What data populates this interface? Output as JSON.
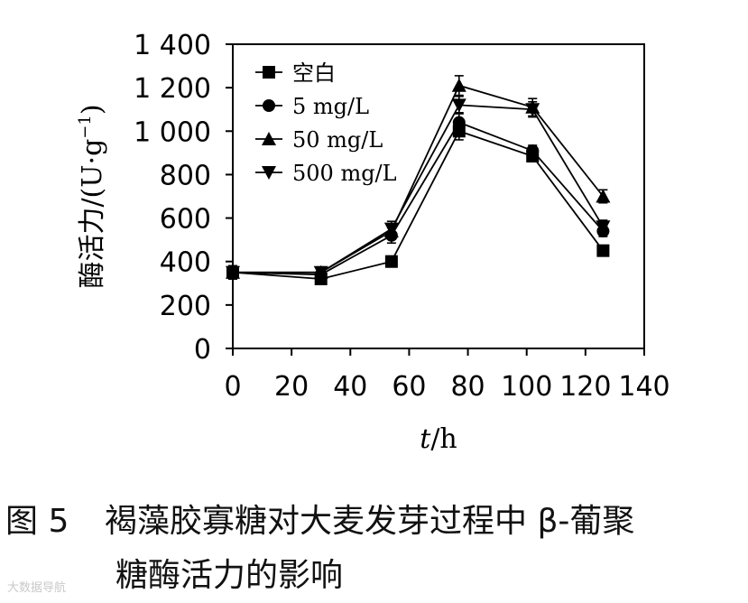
{
  "chart_data": {
    "type": "line",
    "x": [
      0,
      30,
      54,
      77,
      102,
      126
    ],
    "xlim": [
      0,
      140
    ],
    "xticks": [
      0,
      20,
      40,
      60,
      80,
      100,
      120,
      140
    ],
    "xtick_labels": [
      "0",
      "20",
      "40",
      "60",
      "80",
      "100",
      "120",
      "140"
    ],
    "ylim": [
      0,
      1400
    ],
    "yticks": [
      0,
      200,
      400,
      600,
      800,
      1000,
      1200,
      1400
    ],
    "ytick_labels": [
      "0",
      "200",
      "400",
      "600",
      "800",
      "1 000",
      "1 200",
      "1 400"
    ],
    "xlabel_italic": "t",
    "xlabel_rest": "/h",
    "ylabel": "酶活力/(U·g",
    "ylabel_sup": "−1",
    "ylabel_end": ")",
    "grid": false,
    "legend_position": "top-left",
    "series": [
      {
        "name": "空白",
        "marker": "square",
        "values": [
          350,
          320,
          400,
          1000,
          885,
          450
        ],
        "errors": [
          30,
          20,
          25,
          40,
          25,
          20
        ]
      },
      {
        "name": "5 mg/L",
        "marker": "circle",
        "values": [
          350,
          340,
          520,
          1040,
          910,
          540
        ],
        "errors": [
          30,
          25,
          35,
          45,
          25,
          25
        ]
      },
      {
        "name": "50 mg/L",
        "marker": "triangle-up",
        "values": [
          350,
          350,
          540,
          1210,
          1110,
          700
        ],
        "errors": [
          30,
          25,
          35,
          45,
          40,
          30
        ]
      },
      {
        "name": "500 mg/L",
        "marker": "triangle-down",
        "values": [
          350,
          350,
          550,
          1120,
          1100,
          560
        ],
        "errors": [
          30,
          25,
          35,
          40,
          35,
          30
        ]
      }
    ]
  },
  "caption": {
    "figure_number": "图 5",
    "line1": "褐藻胶寡糖对大麦发芽过程中 β-葡聚",
    "line2": "糖酶活力的影响"
  },
  "watermark": "大数据导航"
}
